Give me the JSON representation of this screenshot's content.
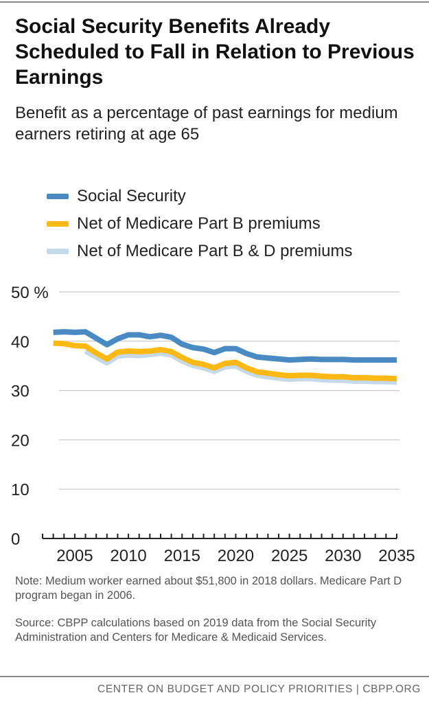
{
  "chart_data": {
    "type": "line",
    "title": "Social Security Benefits Already Scheduled to Fall in Relation to Previous Earnings",
    "subtitle": "Benefit as a percentage of past earnings for medium earners retiring at age 65",
    "xlabel": "",
    "ylabel": "",
    "xlim": [
      2002,
      2035
    ],
    "ylim": [
      0,
      50
    ],
    "x_ticks": [
      2005,
      2010,
      2015,
      2020,
      2025,
      2030,
      2035
    ],
    "y_ticks": [
      {
        "value": 0,
        "label": "0"
      },
      {
        "value": 10,
        "label": "10"
      },
      {
        "value": 20,
        "label": "20"
      },
      {
        "value": 30,
        "label": "30"
      },
      {
        "value": 40,
        "label": "40"
      },
      {
        "value": 50,
        "label": "50 %"
      }
    ],
    "x": [
      2003,
      2004,
      2005,
      2006,
      2007,
      2008,
      2009,
      2010,
      2011,
      2012,
      2013,
      2014,
      2015,
      2016,
      2017,
      2018,
      2019,
      2020,
      2021,
      2022,
      2023,
      2024,
      2025,
      2026,
      2027,
      2028,
      2029,
      2030,
      2031,
      2032,
      2033,
      2034,
      2035
    ],
    "series": [
      {
        "name": "Net of Medicare Part B & D premiums",
        "color": "#c6d9e9",
        "values": [
          null,
          null,
          null,
          38.0,
          36.8,
          35.6,
          37.0,
          37.2,
          37.1,
          37.3,
          37.6,
          37.2,
          36.0,
          35.1,
          34.6,
          33.9,
          34.8,
          35.0,
          33.9,
          33.1,
          32.8,
          32.5,
          32.3,
          32.4,
          32.4,
          32.2,
          32.1,
          32.1,
          31.9,
          31.9,
          31.8,
          31.8,
          31.7
        ]
      },
      {
        "name": "Net of Medicare Part B premiums",
        "color": "#fdb913",
        "values": [
          39.6,
          39.5,
          39.1,
          39.0,
          37.6,
          36.4,
          37.8,
          38.0,
          37.9,
          38.0,
          38.3,
          37.9,
          36.7,
          35.7,
          35.3,
          34.6,
          35.5,
          35.7,
          34.6,
          33.8,
          33.5,
          33.2,
          33.0,
          33.1,
          33.1,
          32.9,
          32.8,
          32.8,
          32.6,
          32.6,
          32.5,
          32.5,
          32.4
        ]
      },
      {
        "name": "Social Security",
        "color": "#4a8ac2",
        "values": [
          41.8,
          41.9,
          41.8,
          41.9,
          40.6,
          39.3,
          40.5,
          41.3,
          41.3,
          40.9,
          41.2,
          40.8,
          39.4,
          38.7,
          38.4,
          37.7,
          38.5,
          38.5,
          37.5,
          36.8,
          36.6,
          36.4,
          36.2,
          36.3,
          36.4,
          36.3,
          36.3,
          36.3,
          36.2,
          36.2,
          36.2,
          36.2,
          36.2
        ]
      }
    ],
    "legend": [
      {
        "label": "Social Security",
        "color": "#4a8ac2"
      },
      {
        "label": "Net of Medicare Part B premiums",
        "color": "#fdb913"
      },
      {
        "label": "Net of Medicare Part B & D premiums",
        "color": "#c6d9e9"
      }
    ],
    "legend_position": "top-left",
    "grid": true
  },
  "notes": {
    "note": "Note: Medium worker earned about $51,800 in 2018 dollars. Medicare Part D program began in 2006.",
    "source": "Source: CBPP calculations based on 2019 data from the Social Security Administration and Centers for Medicare & Medicaid Services."
  },
  "footer": {
    "text": "CENTER ON BUDGET AND POLICY PRIORITIES | CBPP.ORG"
  },
  "colors": {
    "gridline": "#bdbdbd",
    "axis": "#222222",
    "text": "#222222"
  }
}
